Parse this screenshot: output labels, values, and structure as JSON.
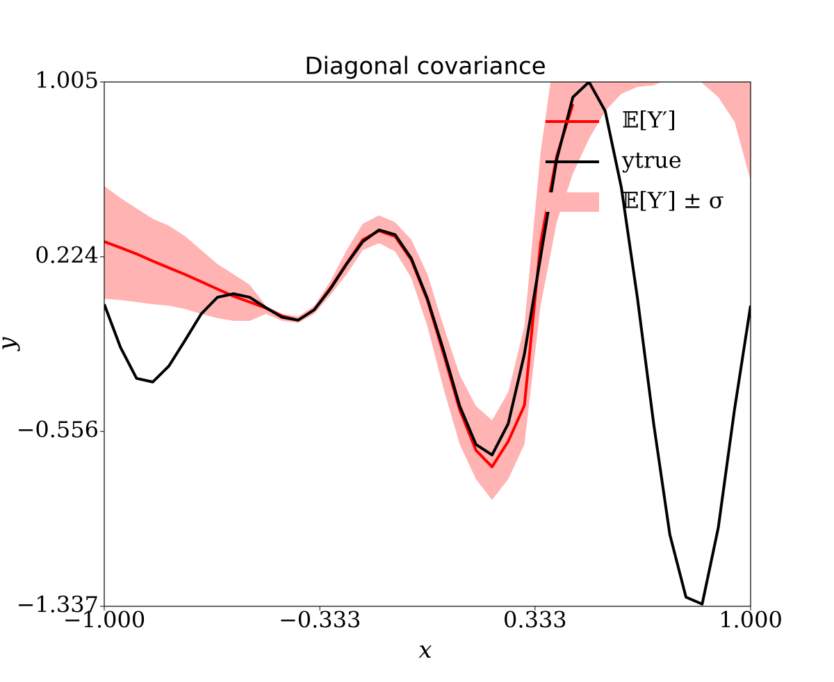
{
  "chart_data": {
    "type": "line",
    "title": "Diagonal covariance",
    "x_label": "x",
    "y_label": "y",
    "x": [
      -1.0,
      -0.95,
      -0.9,
      -0.85,
      -0.8,
      -0.75,
      -0.7,
      -0.65,
      -0.6,
      -0.55,
      -0.5,
      -0.45,
      -0.4,
      -0.35,
      -0.3,
      -0.25,
      -0.2,
      -0.15,
      -0.1,
      -0.05,
      0.0,
      0.05,
      0.1,
      0.15,
      0.2,
      0.25,
      0.3,
      0.35,
      0.4,
      0.45,
      0.5,
      0.55,
      0.6,
      0.65,
      0.7,
      0.75,
      0.8,
      0.85,
      0.9,
      0.95,
      1.0
    ],
    "series": [
      {
        "name": "𝔼[Y′]",
        "color": "#ff0000",
        "values": [
          0.292,
          0.265,
          0.237,
          0.205,
          0.175,
          0.145,
          0.113,
          0.08,
          0.048,
          0.022,
          -0.005,
          -0.04,
          -0.059,
          -0.012,
          0.085,
          0.195,
          0.3,
          0.34,
          0.315,
          0.21,
          0.03,
          -0.21,
          -0.46,
          -0.64,
          -0.714,
          -0.6,
          -0.44,
          0.285,
          0.673,
          0.906,
          null,
          null,
          null,
          null,
          null,
          null,
          null,
          null,
          null,
          null,
          null
        ]
      },
      {
        "name": "ytrue",
        "color": "#000000",
        "values": [
          0.012,
          -0.18,
          -0.319,
          -0.335,
          -0.264,
          -0.149,
          -0.031,
          0.043,
          0.059,
          0.043,
          -0.003,
          -0.046,
          -0.059,
          -0.012,
          0.081,
          0.192,
          0.292,
          0.344,
          0.323,
          0.217,
          0.037,
          -0.195,
          -0.443,
          -0.614,
          -0.661,
          -0.521,
          -0.211,
          0.223,
          0.658,
          0.937,
          1.005,
          0.875,
          0.534,
          0.037,
          -0.521,
          -1.017,
          -1.296,
          -1.327,
          -0.986,
          -0.459,
          0.006
        ]
      },
      {
        "name": "𝔼[Y′] ± σ",
        "color": "#ffb3b3",
        "type": "band",
        "lower": [
          0.037,
          0.031,
          0.022,
          0.012,
          0.006,
          -0.009,
          -0.031,
          -0.05,
          -0.062,
          -0.062,
          -0.031,
          -0.062,
          -0.071,
          -0.031,
          0.053,
          0.146,
          0.254,
          0.285,
          0.248,
          0.13,
          -0.087,
          -0.366,
          -0.614,
          -0.769,
          -0.862,
          -0.769,
          -0.614,
          0.006,
          0.378,
          0.596,
          0.751,
          0.875,
          0.952,
          0.983,
          0.99,
          1.02,
          1.05,
          1.0,
          0.937,
          0.828,
          0.565
        ],
        "upper": [
          0.54,
          0.487,
          0.44,
          0.394,
          0.363,
          0.316,
          0.254,
          0.192,
          0.146,
          0.099,
          0.006,
          -0.031,
          -0.043,
          0.006,
          0.115,
          0.254,
          0.372,
          0.409,
          0.378,
          0.301,
          0.146,
          -0.087,
          -0.304,
          -0.443,
          -0.506,
          -0.381,
          -0.087,
          0.689,
          1.2,
          1.4,
          1.6,
          1.7,
          1.8,
          1.8,
          1.8,
          1.8,
          1.8,
          1.8,
          1.8,
          1.8,
          1.8
        ]
      }
    ],
    "xlim": [
      -1,
      1
    ],
    "ylim": [
      -1.337,
      1.005
    ],
    "xticks": [
      {
        "value": -1,
        "label": "−1.000"
      },
      {
        "value": -0.333,
        "label": "−0.333"
      },
      {
        "value": 0.333,
        "label": "0.333"
      },
      {
        "value": 1,
        "label": "1.000"
      }
    ],
    "yticks": [
      {
        "value": -1.337,
        "label": "−1.337"
      },
      {
        "value": -0.556,
        "label": "−0.556"
      },
      0.224,
      1.005
    ],
    "legend": "upper right"
  }
}
